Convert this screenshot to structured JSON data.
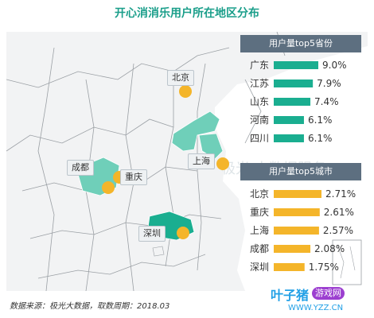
{
  "title": "开心消消乐用户所在地区分布",
  "source_note": "数据来源：极光大数据，取数周期：2018.03",
  "watermark": {
    "brand": "叶子猪",
    "badge": "游戏网",
    "url": "WWW.YZZ.CN",
    "faint_text": "极光 大数据服务"
  },
  "colors": {
    "province_bar": "#1aae90",
    "city_bar": "#f4b52a",
    "panel_header": "#5d6f80",
    "highlight_region": "#6fcfb9",
    "title": "#1a9e8a"
  },
  "city_tags": [
    "北京",
    "成都",
    "重庆",
    "上海",
    "深圳"
  ],
  "chart_data": [
    {
      "type": "bar",
      "orientation": "horizontal",
      "title": "用户量top5省份",
      "categories": [
        "广东",
        "江苏",
        "山东",
        "河南",
        "四川"
      ],
      "values": [
        9.0,
        7.9,
        7.4,
        6.1,
        6.1
      ],
      "value_labels": [
        "9.0%",
        "7.9%",
        "7.4%",
        "6.1%",
        "6.1%"
      ],
      "unit": "%"
    },
    {
      "type": "bar",
      "orientation": "horizontal",
      "title": "用户量top5城市",
      "categories": [
        "北京",
        "重庆",
        "上海",
        "成都",
        "深圳"
      ],
      "values": [
        2.71,
        2.61,
        2.57,
        2.08,
        1.75
      ],
      "value_labels": [
        "2.71%",
        "2.61%",
        "2.57%",
        "2.08%",
        "1.75%"
      ],
      "unit": "%"
    }
  ]
}
